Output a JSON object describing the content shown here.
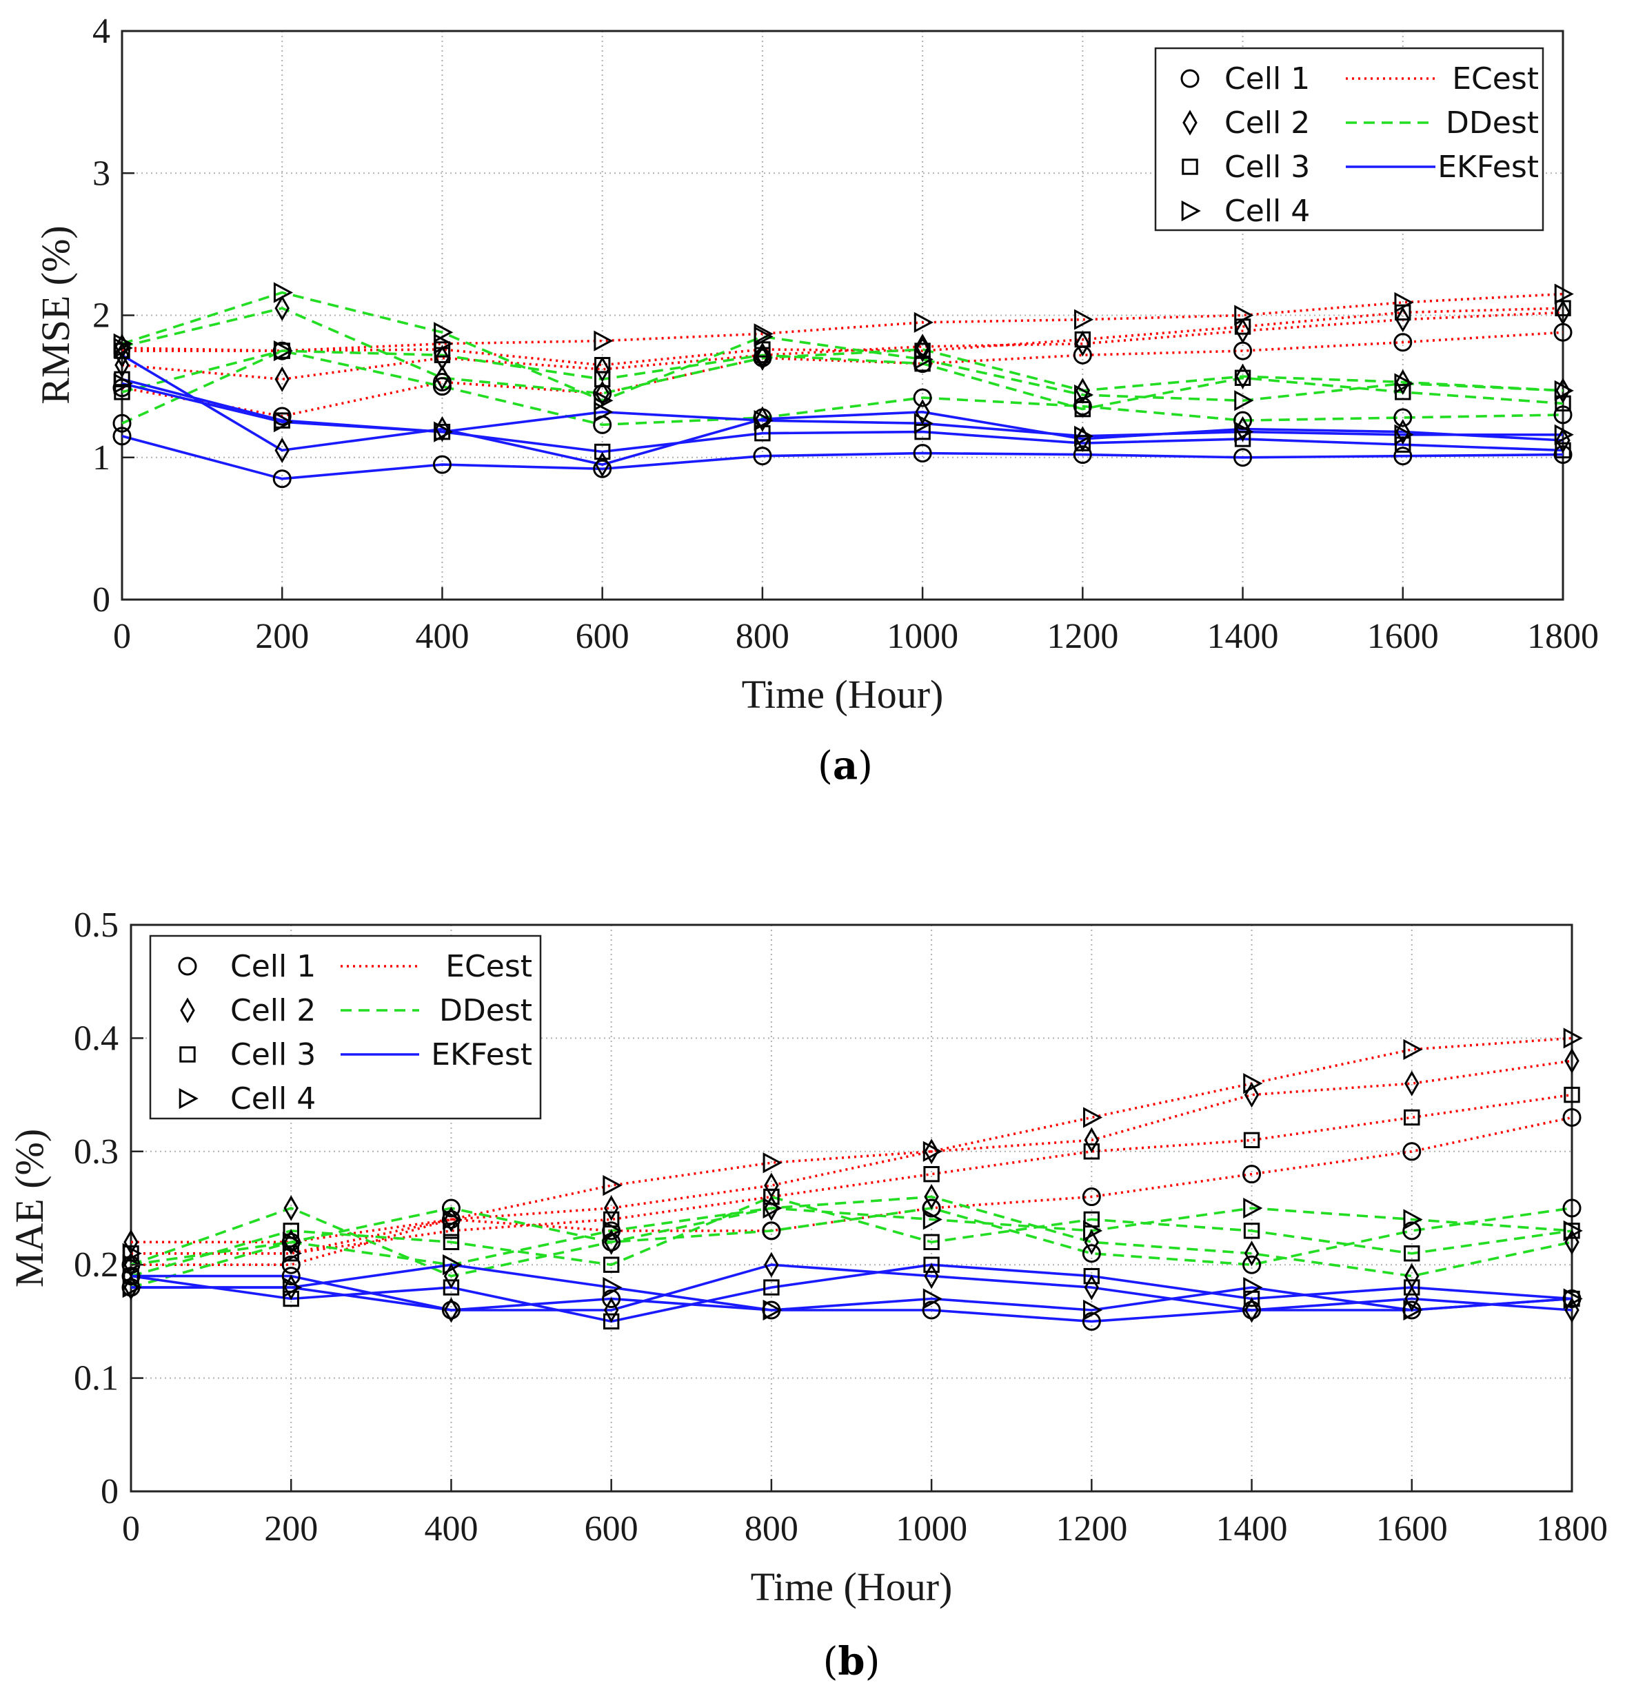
{
  "figure": {
    "panels": [
      "a",
      "b"
    ]
  },
  "colors": {
    "ECest": "#ff0000",
    "DDest": "#22dd22",
    "EKFest": "#1a1aff",
    "marker": "#000000",
    "grid": "#b0b0b0"
  },
  "legend_labels": {
    "cells": [
      "Cell 1",
      "Cell 2",
      "Cell 3",
      "Cell 4"
    ],
    "methods": [
      "ECest",
      "DDest",
      "EKFest"
    ]
  },
  "marker_icons": [
    "circle-icon",
    "diamond-icon",
    "square-icon",
    "triangle-right-icon"
  ],
  "chart_data": [
    {
      "id": "a",
      "type": "line",
      "caption_letter": "a",
      "xlabel": "Time (Hour)",
      "ylabel": "RMSE (%)",
      "x": [
        0,
        200,
        400,
        600,
        800,
        1000,
        1200,
        1400,
        1600,
        1800
      ],
      "xlim": [
        0,
        1800
      ],
      "ylim": [
        0,
        4
      ],
      "xticks": [
        "0",
        "200",
        "400",
        "600",
        "800",
        "1000",
        "1200",
        "1400",
        "1600",
        "1800"
      ],
      "yticks": [
        "0",
        "1",
        "2",
        "3",
        "4"
      ],
      "grid": true,
      "legend_position": "top-right",
      "series": [
        {
          "method": "ECest",
          "cell": 1,
          "values": [
            1.49,
            1.29,
            1.53,
            1.45,
            1.7,
            1.66,
            1.72,
            1.75,
            1.81,
            1.88
          ]
        },
        {
          "method": "ECest",
          "cell": 2,
          "values": [
            1.65,
            1.55,
            1.7,
            1.62,
            1.72,
            1.78,
            1.8,
            1.89,
            1.97,
            2.02
          ]
        },
        {
          "method": "ECest",
          "cell": 3,
          "values": [
            1.75,
            1.75,
            1.76,
            1.65,
            1.76,
            1.75,
            1.83,
            1.92,
            2.02,
            2.05
          ]
        },
        {
          "method": "ECest",
          "cell": 4,
          "values": [
            1.77,
            1.75,
            1.8,
            1.82,
            1.87,
            1.95,
            1.97,
            2.0,
            2.09,
            2.15
          ]
        },
        {
          "method": "DDest",
          "cell": 1,
          "values": [
            1.24,
            1.75,
            1.5,
            1.23,
            1.28,
            1.42,
            1.36,
            1.26,
            1.28,
            1.3
          ]
        },
        {
          "method": "DDest",
          "cell": 2,
          "values": [
            1.78,
            2.05,
            1.56,
            1.45,
            1.7,
            1.76,
            1.47,
            1.57,
            1.53,
            1.47
          ]
        },
        {
          "method": "DDest",
          "cell": 3,
          "values": [
            1.46,
            1.75,
            1.72,
            1.55,
            1.72,
            1.66,
            1.34,
            1.56,
            1.46,
            1.38
          ]
        },
        {
          "method": "DDest",
          "cell": 4,
          "values": [
            1.8,
            2.16,
            1.88,
            1.4,
            1.85,
            1.69,
            1.44,
            1.4,
            1.52,
            1.47
          ]
        },
        {
          "method": "EKFest",
          "cell": 1,
          "values": [
            1.15,
            0.85,
            0.95,
            0.92,
            1.01,
            1.03,
            1.02,
            1.0,
            1.01,
            1.02
          ]
        },
        {
          "method": "EKFest",
          "cell": 2,
          "values": [
            1.72,
            1.05,
            1.2,
            0.95,
            1.27,
            1.32,
            1.13,
            1.2,
            1.18,
            1.12
          ]
        },
        {
          "method": "EKFest",
          "cell": 3,
          "values": [
            1.55,
            1.26,
            1.18,
            1.04,
            1.17,
            1.18,
            1.1,
            1.13,
            1.09,
            1.05
          ]
        },
        {
          "method": "EKFest",
          "cell": 4,
          "values": [
            1.52,
            1.25,
            1.18,
            1.32,
            1.26,
            1.24,
            1.15,
            1.18,
            1.16,
            1.16
          ]
        }
      ]
    },
    {
      "id": "b",
      "type": "line",
      "caption_letter": "b",
      "xlabel": "Time (Hour)",
      "ylabel": "MAE (%)",
      "x": [
        0,
        200,
        400,
        600,
        800,
        1000,
        1200,
        1400,
        1600,
        1800
      ],
      "xlim": [
        0,
        1800
      ],
      "ylim": [
        0,
        0.5
      ],
      "xticks": [
        "0",
        "200",
        "400",
        "600",
        "800",
        "1000",
        "1200",
        "1400",
        "1600",
        "1800"
      ],
      "yticks": [
        "0",
        "0.1",
        "0.2",
        "0.3",
        "0.4",
        "0.5"
      ],
      "grid": true,
      "legend_position": "top-left",
      "series": [
        {
          "method": "ECest",
          "cell": 1,
          "values": [
            0.2,
            0.2,
            0.24,
            0.23,
            0.23,
            0.25,
            0.26,
            0.28,
            0.3,
            0.33
          ]
        },
        {
          "method": "ECest",
          "cell": 2,
          "values": [
            0.22,
            0.22,
            0.24,
            0.25,
            0.27,
            0.3,
            0.31,
            0.35,
            0.36,
            0.38
          ]
        },
        {
          "method": "ECest",
          "cell": 3,
          "values": [
            0.21,
            0.21,
            0.23,
            0.24,
            0.26,
            0.28,
            0.3,
            0.31,
            0.33,
            0.35
          ]
        },
        {
          "method": "ECest",
          "cell": 4,
          "values": [
            0.21,
            0.21,
            0.24,
            0.27,
            0.29,
            0.3,
            0.33,
            0.36,
            0.39,
            0.4
          ]
        },
        {
          "method": "DDest",
          "cell": 1,
          "values": [
            0.18,
            0.22,
            0.25,
            0.22,
            0.23,
            0.25,
            0.21,
            0.2,
            0.23,
            0.25
          ]
        },
        {
          "method": "DDest",
          "cell": 2,
          "values": [
            0.2,
            0.25,
            0.19,
            0.22,
            0.25,
            0.26,
            0.22,
            0.21,
            0.19,
            0.22
          ]
        },
        {
          "method": "DDest",
          "cell": 3,
          "values": [
            0.19,
            0.23,
            0.22,
            0.2,
            0.26,
            0.22,
            0.24,
            0.23,
            0.21,
            0.23
          ]
        },
        {
          "method": "DDest",
          "cell": 4,
          "values": [
            0.2,
            0.22,
            0.2,
            0.23,
            0.25,
            0.24,
            0.23,
            0.25,
            0.24,
            0.23
          ]
        },
        {
          "method": "EKFest",
          "cell": 1,
          "values": [
            0.19,
            0.19,
            0.16,
            0.17,
            0.16,
            0.16,
            0.15,
            0.16,
            0.16,
            0.17
          ]
        },
        {
          "method": "EKFest",
          "cell": 2,
          "values": [
            0.18,
            0.18,
            0.16,
            0.16,
            0.2,
            0.19,
            0.18,
            0.16,
            0.17,
            0.16
          ]
        },
        {
          "method": "EKFest",
          "cell": 3,
          "values": [
            0.19,
            0.17,
            0.18,
            0.15,
            0.18,
            0.2,
            0.19,
            0.17,
            0.18,
            0.17
          ]
        },
        {
          "method": "EKFest",
          "cell": 4,
          "values": [
            0.18,
            0.18,
            0.2,
            0.18,
            0.16,
            0.17,
            0.16,
            0.18,
            0.16,
            0.17
          ]
        }
      ]
    }
  ]
}
